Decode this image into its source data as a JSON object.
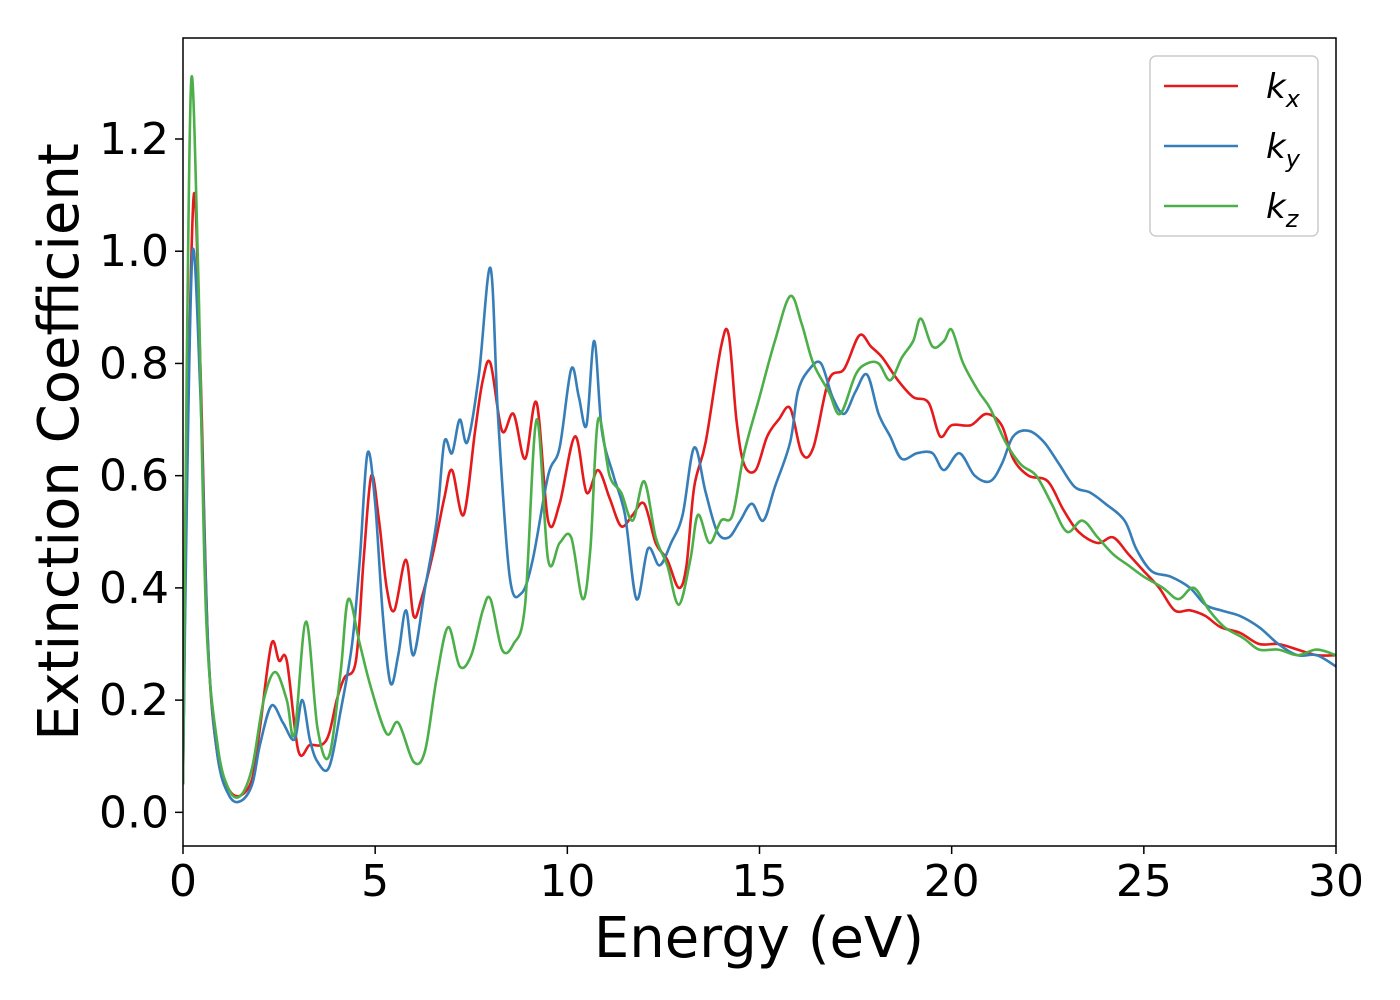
{
  "chart_data": {
    "type": "line",
    "xlabel": "Energy (eV)",
    "ylabel": "Extinction Coefficient",
    "xlim": [
      0,
      30
    ],
    "ylim": [
      -0.06,
      1.38
    ],
    "x_ticks": [
      "0",
      "5",
      "10",
      "15",
      "20",
      "25",
      "30"
    ],
    "y_ticks": [
      "0.0",
      "0.2",
      "0.4",
      "0.6",
      "0.8",
      "1.0",
      "1.2"
    ],
    "grid": false,
    "legend_position": "top-right",
    "series": [
      {
        "name": "k_x",
        "legend_base": "k",
        "legend_sub": "x",
        "color": "#e41a1c",
        "points": [
          [
            0,
            0.05
          ],
          [
            0.1,
            0.6
          ],
          [
            0.28,
            1.1
          ],
          [
            0.45,
            0.8
          ],
          [
            0.65,
            0.3
          ],
          [
            0.9,
            0.1
          ],
          [
            1.2,
            0.04
          ],
          [
            1.5,
            0.03
          ],
          [
            1.8,
            0.06
          ],
          [
            2.0,
            0.15
          ],
          [
            2.3,
            0.3
          ],
          [
            2.5,
            0.27
          ],
          [
            2.7,
            0.27
          ],
          [
            3.0,
            0.11
          ],
          [
            3.3,
            0.12
          ],
          [
            3.6,
            0.12
          ],
          [
            3.8,
            0.14
          ],
          [
            4.0,
            0.2
          ],
          [
            4.2,
            0.24
          ],
          [
            4.5,
            0.27
          ],
          [
            4.7,
            0.45
          ],
          [
            4.9,
            0.6
          ],
          [
            5.1,
            0.52
          ],
          [
            5.3,
            0.4
          ],
          [
            5.5,
            0.36
          ],
          [
            5.8,
            0.45
          ],
          [
            6.0,
            0.35
          ],
          [
            6.2,
            0.38
          ],
          [
            6.5,
            0.46
          ],
          [
            6.8,
            0.56
          ],
          [
            7.0,
            0.61
          ],
          [
            7.3,
            0.53
          ],
          [
            7.6,
            0.68
          ],
          [
            7.8,
            0.77
          ],
          [
            8.0,
            0.8
          ],
          [
            8.3,
            0.68
          ],
          [
            8.6,
            0.71
          ],
          [
            8.9,
            0.63
          ],
          [
            9.2,
            0.73
          ],
          [
            9.5,
            0.52
          ],
          [
            9.8,
            0.55
          ],
          [
            10.2,
            0.67
          ],
          [
            10.5,
            0.57
          ],
          [
            10.8,
            0.61
          ],
          [
            11.1,
            0.56
          ],
          [
            11.4,
            0.51
          ],
          [
            11.7,
            0.53
          ],
          [
            12.0,
            0.55
          ],
          [
            12.3,
            0.48
          ],
          [
            12.6,
            0.45
          ],
          [
            12.9,
            0.4
          ],
          [
            13.1,
            0.44
          ],
          [
            13.3,
            0.58
          ],
          [
            13.6,
            0.66
          ],
          [
            14.0,
            0.83
          ],
          [
            14.2,
            0.85
          ],
          [
            14.4,
            0.7
          ],
          [
            14.6,
            0.62
          ],
          [
            14.9,
            0.61
          ],
          [
            15.2,
            0.67
          ],
          [
            15.5,
            0.7
          ],
          [
            15.8,
            0.72
          ],
          [
            16.1,
            0.64
          ],
          [
            16.4,
            0.65
          ],
          [
            16.8,
            0.77
          ],
          [
            17.2,
            0.79
          ],
          [
            17.6,
            0.85
          ],
          [
            17.9,
            0.83
          ],
          [
            18.2,
            0.81
          ],
          [
            18.6,
            0.77
          ],
          [
            19.0,
            0.74
          ],
          [
            19.4,
            0.73
          ],
          [
            19.7,
            0.67
          ],
          [
            20.0,
            0.69
          ],
          [
            20.5,
            0.69
          ],
          [
            20.9,
            0.71
          ],
          [
            21.3,
            0.69
          ],
          [
            21.6,
            0.63
          ],
          [
            22.0,
            0.6
          ],
          [
            22.5,
            0.59
          ],
          [
            22.9,
            0.54
          ],
          [
            23.3,
            0.5
          ],
          [
            23.8,
            0.48
          ],
          [
            24.2,
            0.49
          ],
          [
            24.6,
            0.46
          ],
          [
            25.0,
            0.43
          ],
          [
            25.4,
            0.4
          ],
          [
            25.8,
            0.36
          ],
          [
            26.2,
            0.36
          ],
          [
            26.6,
            0.35
          ],
          [
            27.0,
            0.33
          ],
          [
            27.5,
            0.32
          ],
          [
            28.0,
            0.3
          ],
          [
            28.5,
            0.3
          ],
          [
            29.0,
            0.29
          ],
          [
            29.5,
            0.28
          ],
          [
            30.0,
            0.28
          ]
        ]
      },
      {
        "name": "k_y",
        "legend_base": "k",
        "legend_sub": "y",
        "color": "#377eb8",
        "points": [
          [
            0,
            0.05
          ],
          [
            0.1,
            0.55
          ],
          [
            0.25,
            1.0
          ],
          [
            0.45,
            0.75
          ],
          [
            0.65,
            0.3
          ],
          [
            0.9,
            0.1
          ],
          [
            1.2,
            0.03
          ],
          [
            1.5,
            0.02
          ],
          [
            1.8,
            0.05
          ],
          [
            2.0,
            0.12
          ],
          [
            2.3,
            0.19
          ],
          [
            2.6,
            0.16
          ],
          [
            2.9,
            0.13
          ],
          [
            3.1,
            0.2
          ],
          [
            3.3,
            0.13
          ],
          [
            3.5,
            0.09
          ],
          [
            3.8,
            0.08
          ],
          [
            4.1,
            0.18
          ],
          [
            4.4,
            0.3
          ],
          [
            4.6,
            0.45
          ],
          [
            4.8,
            0.64
          ],
          [
            5.0,
            0.55
          ],
          [
            5.2,
            0.35
          ],
          [
            5.4,
            0.23
          ],
          [
            5.6,
            0.28
          ],
          [
            5.8,
            0.36
          ],
          [
            6.0,
            0.28
          ],
          [
            6.3,
            0.4
          ],
          [
            6.6,
            0.52
          ],
          [
            6.8,
            0.66
          ],
          [
            7.0,
            0.64
          ],
          [
            7.2,
            0.7
          ],
          [
            7.4,
            0.66
          ],
          [
            7.7,
            0.78
          ],
          [
            8.0,
            0.97
          ],
          [
            8.2,
            0.7
          ],
          [
            8.5,
            0.42
          ],
          [
            8.8,
            0.39
          ],
          [
            9.1,
            0.45
          ],
          [
            9.5,
            0.6
          ],
          [
            9.8,
            0.65
          ],
          [
            10.1,
            0.79
          ],
          [
            10.3,
            0.74
          ],
          [
            10.5,
            0.69
          ],
          [
            10.7,
            0.84
          ],
          [
            10.9,
            0.68
          ],
          [
            11.2,
            0.6
          ],
          [
            11.5,
            0.53
          ],
          [
            11.8,
            0.38
          ],
          [
            12.1,
            0.47
          ],
          [
            12.4,
            0.44
          ],
          [
            12.7,
            0.48
          ],
          [
            13.0,
            0.53
          ],
          [
            13.3,
            0.65
          ],
          [
            13.6,
            0.57
          ],
          [
            13.9,
            0.5
          ],
          [
            14.2,
            0.49
          ],
          [
            14.5,
            0.52
          ],
          [
            14.8,
            0.55
          ],
          [
            15.1,
            0.52
          ],
          [
            15.4,
            0.58
          ],
          [
            15.8,
            0.66
          ],
          [
            16.0,
            0.75
          ],
          [
            16.3,
            0.79
          ],
          [
            16.6,
            0.8
          ],
          [
            16.9,
            0.74
          ],
          [
            17.2,
            0.71
          ],
          [
            17.5,
            0.75
          ],
          [
            17.8,
            0.78
          ],
          [
            18.1,
            0.71
          ],
          [
            18.4,
            0.67
          ],
          [
            18.7,
            0.63
          ],
          [
            19.1,
            0.64
          ],
          [
            19.5,
            0.64
          ],
          [
            19.8,
            0.61
          ],
          [
            20.2,
            0.64
          ],
          [
            20.6,
            0.6
          ],
          [
            21.0,
            0.59
          ],
          [
            21.3,
            0.62
          ],
          [
            21.6,
            0.67
          ],
          [
            22.0,
            0.68
          ],
          [
            22.4,
            0.66
          ],
          [
            22.8,
            0.62
          ],
          [
            23.2,
            0.58
          ],
          [
            23.6,
            0.57
          ],
          [
            24.0,
            0.55
          ],
          [
            24.5,
            0.52
          ],
          [
            24.8,
            0.47
          ],
          [
            25.2,
            0.43
          ],
          [
            25.7,
            0.42
          ],
          [
            26.2,
            0.4
          ],
          [
            26.6,
            0.37
          ],
          [
            27.0,
            0.36
          ],
          [
            27.5,
            0.35
          ],
          [
            28.0,
            0.33
          ],
          [
            28.5,
            0.3
          ],
          [
            29.0,
            0.28
          ],
          [
            29.5,
            0.28
          ],
          [
            30.0,
            0.26
          ]
        ]
      },
      {
        "name": "k_z",
        "legend_base": "k",
        "legend_sub": "z",
        "color": "#4daf4a",
        "points": [
          [
            0,
            0.05
          ],
          [
            0.1,
            0.8
          ],
          [
            0.22,
            1.31
          ],
          [
            0.4,
            0.95
          ],
          [
            0.6,
            0.35
          ],
          [
            0.9,
            0.12
          ],
          [
            1.2,
            0.04
          ],
          [
            1.5,
            0.03
          ],
          [
            1.8,
            0.08
          ],
          [
            2.1,
            0.2
          ],
          [
            2.4,
            0.25
          ],
          [
            2.7,
            0.2
          ],
          [
            2.9,
            0.14
          ],
          [
            3.2,
            0.34
          ],
          [
            3.5,
            0.15
          ],
          [
            3.8,
            0.1
          ],
          [
            4.1,
            0.25
          ],
          [
            4.3,
            0.38
          ],
          [
            4.6,
            0.3
          ],
          [
            4.9,
            0.22
          ],
          [
            5.3,
            0.14
          ],
          [
            5.6,
            0.16
          ],
          [
            6.0,
            0.09
          ],
          [
            6.3,
            0.11
          ],
          [
            6.6,
            0.24
          ],
          [
            6.9,
            0.33
          ],
          [
            7.2,
            0.26
          ],
          [
            7.5,
            0.28
          ],
          [
            7.8,
            0.36
          ],
          [
            8.0,
            0.38
          ],
          [
            8.3,
            0.29
          ],
          [
            8.6,
            0.3
          ],
          [
            8.9,
            0.37
          ],
          [
            9.2,
            0.7
          ],
          [
            9.5,
            0.45
          ],
          [
            9.8,
            0.48
          ],
          [
            10.1,
            0.49
          ],
          [
            10.4,
            0.38
          ],
          [
            10.6,
            0.47
          ],
          [
            10.8,
            0.7
          ],
          [
            11.1,
            0.6
          ],
          [
            11.4,
            0.57
          ],
          [
            11.7,
            0.52
          ],
          [
            12.0,
            0.59
          ],
          [
            12.3,
            0.49
          ],
          [
            12.6,
            0.44
          ],
          [
            12.9,
            0.37
          ],
          [
            13.2,
            0.45
          ],
          [
            13.4,
            0.53
          ],
          [
            13.7,
            0.48
          ],
          [
            14.0,
            0.52
          ],
          [
            14.3,
            0.53
          ],
          [
            14.6,
            0.64
          ],
          [
            15.0,
            0.74
          ],
          [
            15.4,
            0.84
          ],
          [
            15.8,
            0.92
          ],
          [
            16.1,
            0.87
          ],
          [
            16.4,
            0.8
          ],
          [
            16.8,
            0.75
          ],
          [
            17.1,
            0.71
          ],
          [
            17.5,
            0.78
          ],
          [
            17.8,
            0.8
          ],
          [
            18.1,
            0.8
          ],
          [
            18.4,
            0.77
          ],
          [
            18.7,
            0.81
          ],
          [
            19.0,
            0.84
          ],
          [
            19.2,
            0.88
          ],
          [
            19.5,
            0.83
          ],
          [
            19.8,
            0.84
          ],
          [
            20.0,
            0.86
          ],
          [
            20.3,
            0.8
          ],
          [
            20.7,
            0.75
          ],
          [
            21.0,
            0.72
          ],
          [
            21.4,
            0.66
          ],
          [
            21.8,
            0.62
          ],
          [
            22.2,
            0.6
          ],
          [
            22.6,
            0.55
          ],
          [
            23.0,
            0.5
          ],
          [
            23.4,
            0.52
          ],
          [
            23.8,
            0.49
          ],
          [
            24.2,
            0.46
          ],
          [
            24.6,
            0.44
          ],
          [
            25.0,
            0.42
          ],
          [
            25.5,
            0.4
          ],
          [
            25.9,
            0.38
          ],
          [
            26.3,
            0.4
          ],
          [
            26.7,
            0.36
          ],
          [
            27.1,
            0.33
          ],
          [
            27.6,
            0.31
          ],
          [
            28.0,
            0.29
          ],
          [
            28.5,
            0.29
          ],
          [
            29.0,
            0.28
          ],
          [
            29.5,
            0.29
          ],
          [
            30.0,
            0.28
          ]
        ]
      }
    ]
  }
}
